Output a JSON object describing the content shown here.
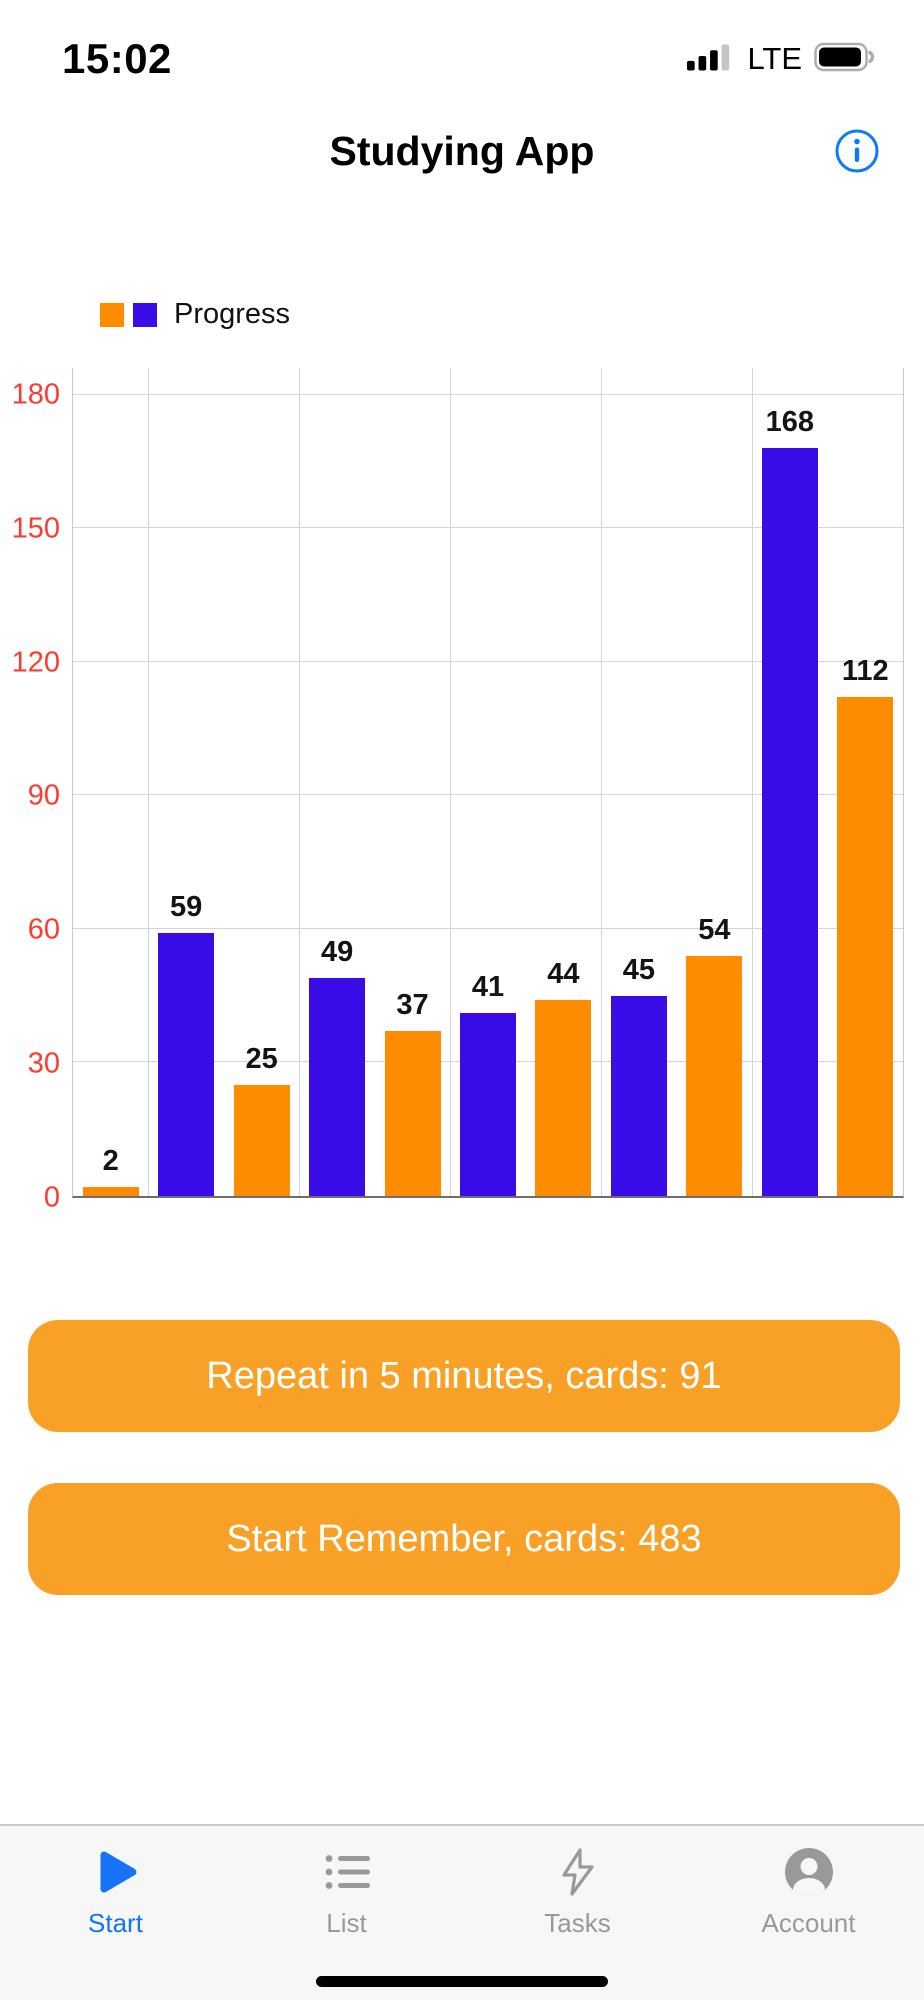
{
  "status_bar": {
    "time": "15:02",
    "network": "LTE"
  },
  "header": {
    "title": "Studying App"
  },
  "chart_data": {
    "type": "bar",
    "title": "Progress",
    "values": [
      2,
      59,
      25,
      49,
      37,
      41,
      44,
      45,
      54,
      168,
      112
    ],
    "colors": [
      "orange",
      "blue",
      "orange",
      "blue",
      "orange",
      "blue",
      "orange",
      "blue",
      "orange",
      "blue",
      "orange"
    ],
    "palette": {
      "orange": "#FF8C00",
      "blue": "#3A0CE8"
    },
    "ylim": [
      0,
      180
    ],
    "yticks": [
      0,
      30,
      60,
      90,
      120,
      150,
      180
    ],
    "ymax_render": 186,
    "tick_color": "#FF3B30",
    "grid": true,
    "legend_position": "top-left",
    "legend_swatches": [
      "orange",
      "blue"
    ]
  },
  "buttons": {
    "repeat_label": "Repeat in 5 minutes, cards: 91",
    "start_label": "Start Remember, cards: 483",
    "color": "#F9A126",
    "text_color": "#FFFFFF"
  },
  "tab_bar": {
    "items": [
      {
        "label": "Start",
        "icon": "play-icon",
        "active": true
      },
      {
        "label": "List",
        "icon": "list-icon",
        "active": false
      },
      {
        "label": "Tasks",
        "icon": "bolt-icon",
        "active": false
      },
      {
        "label": "Account",
        "icon": "account-icon",
        "active": false
      }
    ],
    "active_color": "#1673F5",
    "inactive_color": "#999999"
  }
}
